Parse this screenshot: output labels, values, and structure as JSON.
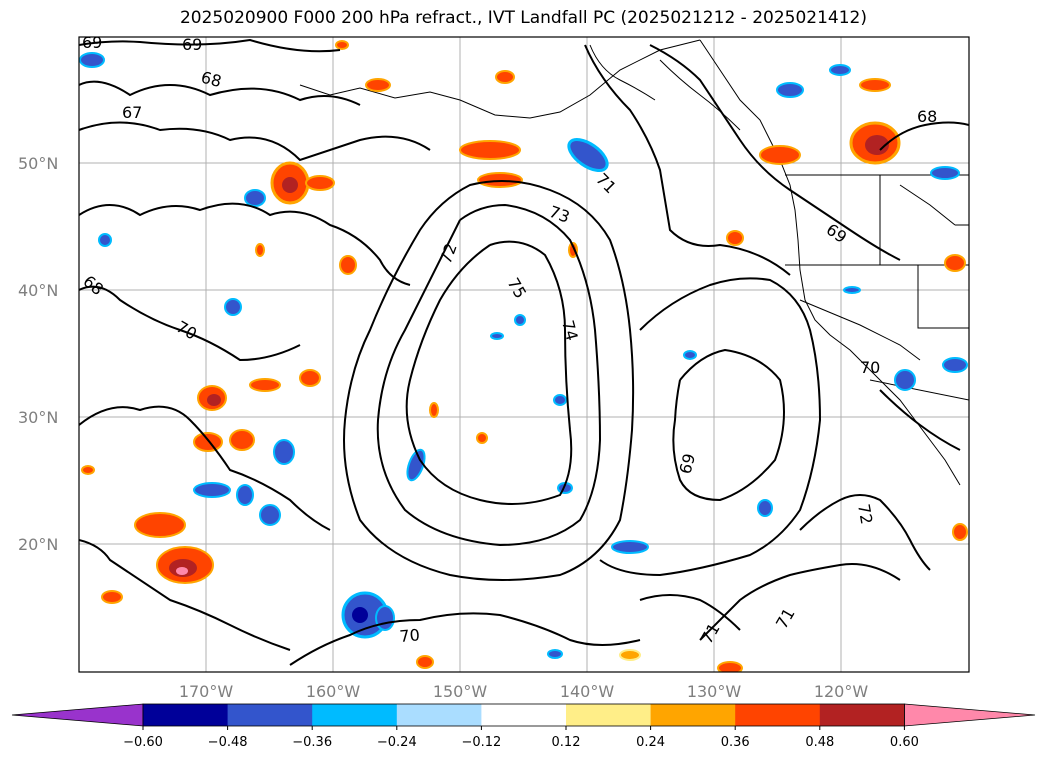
{
  "title": "2025020900 F000 200 hPa refract., IVT Landfall PC (2025021212 - 2025021412)",
  "lat_labels": [
    "50°N",
    "40°N",
    "30°N",
    "20°N"
  ],
  "lon_labels": [
    "170°W",
    "160°W",
    "150°W",
    "140°W",
    "130°W",
    "120°W"
  ],
  "colorbar": {
    "colors": [
      "#9933cc",
      "#000099",
      "#3355cc",
      "#00bbff",
      "#aaddff",
      "#ffffff",
      "#ffee88",
      "#ffa500",
      "#ff4400",
      "#b22222",
      "#ff88aa"
    ],
    "ticks": [
      "−0.60",
      "−0.48",
      "−0.36",
      "−0.24",
      "−0.12",
      "0.12",
      "0.24",
      "0.36",
      "0.48",
      "0.60"
    ]
  },
  "contour_labels": [
    "69",
    "69",
    "68",
    "67",
    "68",
    "70",
    "72",
    "73",
    "71",
    "75",
    "74",
    "69",
    "69",
    "68",
    "70",
    "72",
    "71",
    "71",
    "70"
  ]
}
